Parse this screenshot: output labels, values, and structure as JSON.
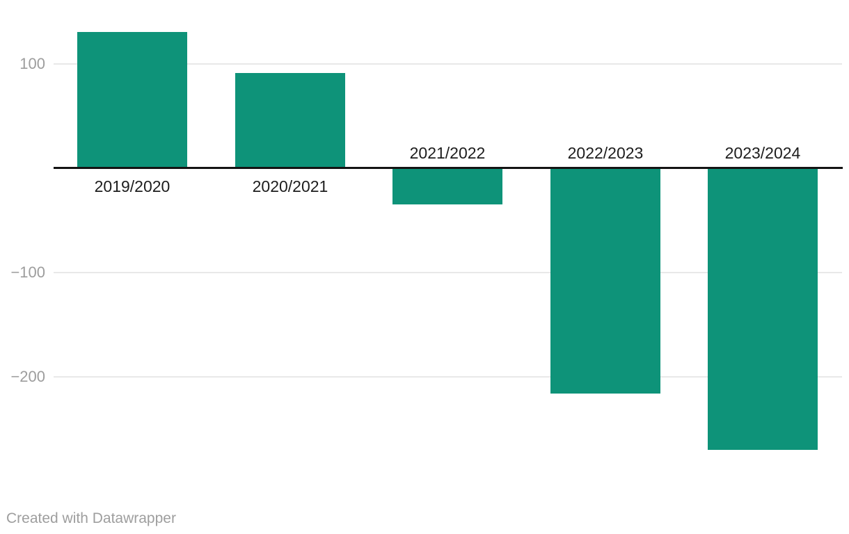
{
  "footer": {
    "credit": "Created with Datawrapper"
  },
  "colors": {
    "background": "#ffffff",
    "bar": "#0e9379",
    "gridline": "#e8e8e8",
    "baseline": "#131313",
    "tick_label": "#9d9d9d",
    "category_label": "#1d1d1d",
    "footer_text": "#9e9e9e"
  },
  "chart_data": {
    "type": "bar",
    "categories": [
      "2019/2020",
      "2020/2021",
      "2021/2022",
      "2022/2023",
      "2023/2024"
    ],
    "values": [
      130,
      91,
      -35,
      -216,
      -270
    ],
    "title": "",
    "xlabel": "",
    "ylabel": "",
    "ylim": [
      -290,
      160
    ],
    "yticks": [
      100,
      -100,
      -200
    ],
    "ytick_labels": [
      "100",
      "−100",
      "−200"
    ],
    "grid": "horizontal",
    "legend": "none",
    "bar_color": "#0e9379",
    "label_placement": "positive bars labeled below baseline, negative bars labeled above baseline"
  }
}
